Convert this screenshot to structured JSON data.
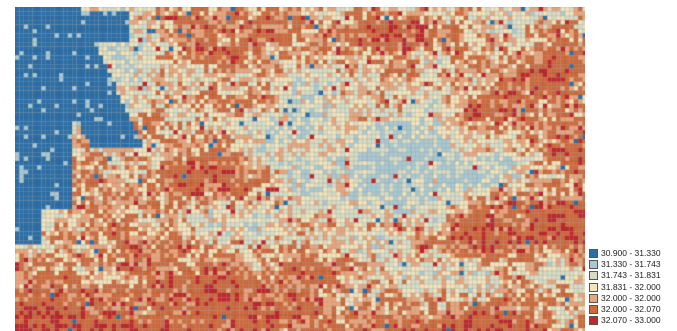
{
  "map": {
    "palette": {
      "c1": "#2b6fa9",
      "c2": "#a9c9d2",
      "c3": "#d6dcc5",
      "c4": "#f2e4bb",
      "c5": "#e9a67d",
      "c6": "#cf6a3c",
      "c7": "#c0272d"
    },
    "grid_lines": true
  },
  "legend": {
    "items": [
      {
        "label": "30.900 - 31.330",
        "color": "#2b6fa9"
      },
      {
        "label": "31.330 - 31.743",
        "color": "#a9c9d2"
      },
      {
        "label": "31.743 - 31.831",
        "color": "#d6dcc5"
      },
      {
        "label": "31.831 - 32.000",
        "color": "#f2e4bb"
      },
      {
        "label": "32.000 - 32.000",
        "color": "#e9a67d"
      },
      {
        "label": "32.000 - 32.070",
        "color": "#cf6a3c"
      },
      {
        "label": "32.070 - 33.000",
        "color": "#c0272d"
      }
    ]
  }
}
